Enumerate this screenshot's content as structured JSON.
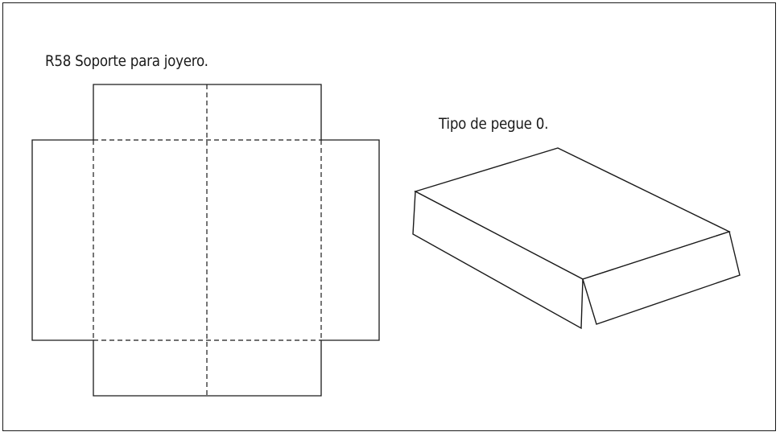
{
  "diagram": {
    "title": "R58 Soporte para joyero.",
    "subtitle": "Tipo de pegue 0."
  }
}
